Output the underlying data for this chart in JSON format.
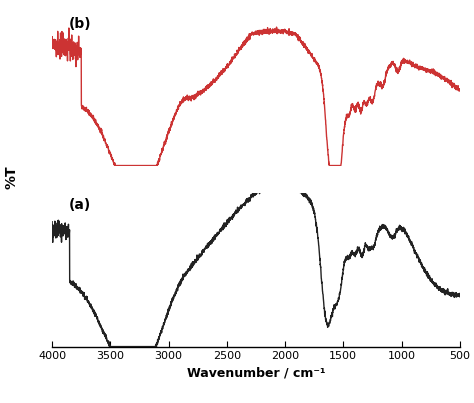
{
  "title_b": "(b)",
  "title_a": "(a)",
  "xlabel": "Wavenumber / cm⁻¹",
  "ylabel": "%T",
  "xlim_left": 4000,
  "xlim_right": 500,
  "color_b": "#cc3333",
  "color_a": "#222222",
  "line_width": 1.0,
  "background_color": "#ffffff",
  "xticks": [
    4000,
    3500,
    3000,
    2500,
    2000,
    1500,
    1000,
    500
  ]
}
